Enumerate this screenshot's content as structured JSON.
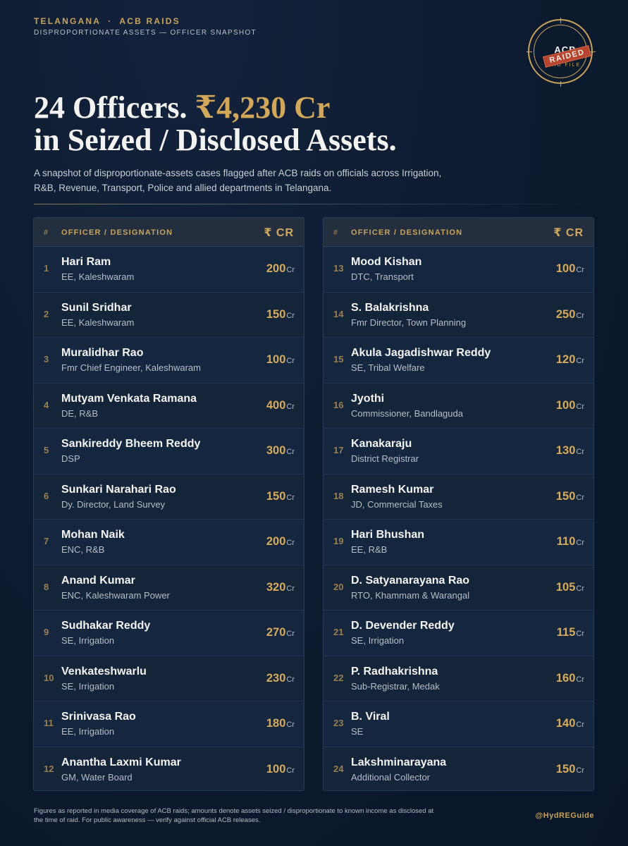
{
  "header": {
    "kicker_left": "TELANGANA",
    "kicker_sep": "·",
    "kicker_right": "ACB RAIDS",
    "subkicker": "DISPROPORTIONATE ASSETS — OFFICER SNAPSHOT"
  },
  "stamp": {
    "top_text": "ACB",
    "overlay": "RAIDED",
    "bottom_text": "AID FILE",
    "icon": "acb-raid-stamp"
  },
  "headline": {
    "part1": "24 Officers.",
    "amount": "₹4,230 Cr",
    "line2": "in Seized / Disclosed Assets."
  },
  "lede": "A snapshot of disproportionate-assets cases flagged after ACB raids on officials across Irrigation, R&B, Revenue, Transport, Police and allied departments in Telangana.",
  "table_header": {
    "num": "#",
    "officer": "OFFICER / DESIGNATION",
    "amount": "₹ CR"
  },
  "left_rows": [
    {
      "num": "1",
      "name": "Hari Ram",
      "designation": "EE, Kaleshwaram",
      "value": "200",
      "unit": "Cr"
    },
    {
      "num": "2",
      "name": "Sunil Sridhar",
      "designation": "EE, Kaleshwaram",
      "value": "150",
      "unit": "Cr"
    },
    {
      "num": "3",
      "name": "Muralidhar Rao",
      "designation": "Fmr Chief Engineer, Kaleshwaram",
      "value": "100",
      "unit": "Cr"
    },
    {
      "num": "4",
      "name": "Mutyam Venkata Ramana",
      "designation": "DE, R&B",
      "value": "400",
      "unit": "Cr"
    },
    {
      "num": "5",
      "name": "Sankireddy Bheem Reddy",
      "designation": "DSP",
      "value": "300",
      "unit": "Cr"
    },
    {
      "num": "6",
      "name": "Sunkari Narahari Rao",
      "designation": "Dy. Director, Land Survey",
      "value": "150",
      "unit": "Cr"
    },
    {
      "num": "7",
      "name": "Mohan Naik",
      "designation": "ENC, R&B",
      "value": "200",
      "unit": "Cr"
    },
    {
      "num": "8",
      "name": "Anand Kumar",
      "designation": "ENC, Kaleshwaram Power",
      "value": "320",
      "unit": "Cr"
    },
    {
      "num": "9",
      "name": "Sudhakar Reddy",
      "designation": "SE, Irrigation",
      "value": "270",
      "unit": "Cr"
    },
    {
      "num": "10",
      "name": "Venkateshwarlu",
      "designation": "SE, Irrigation",
      "value": "230",
      "unit": "Cr"
    },
    {
      "num": "11",
      "name": "Srinivasa Rao",
      "designation": "EE, Irrigation",
      "value": "180",
      "unit": "Cr"
    },
    {
      "num": "12",
      "name": "Anantha Laxmi Kumar",
      "designation": "GM, Water Board",
      "value": "100",
      "unit": "Cr"
    }
  ],
  "right_rows": [
    {
      "num": "13",
      "name": "Mood Kishan",
      "designation": "DTC, Transport",
      "value": "100",
      "unit": "Cr"
    },
    {
      "num": "14",
      "name": "S. Balakrishna",
      "designation": "Fmr Director, Town Planning",
      "value": "250",
      "unit": "Cr"
    },
    {
      "num": "15",
      "name": "Akula Jagadishwar Reddy",
      "designation": "SE, Tribal Welfare",
      "value": "120",
      "unit": "Cr"
    },
    {
      "num": "16",
      "name": "Jyothi",
      "designation": "Commissioner, Bandlaguda",
      "value": "100",
      "unit": "Cr"
    },
    {
      "num": "17",
      "name": "Kanakaraju",
      "designation": "District Registrar",
      "value": "130",
      "unit": "Cr"
    },
    {
      "num": "18",
      "name": "Ramesh Kumar",
      "designation": "JD, Commercial Taxes",
      "value": "150",
      "unit": "Cr"
    },
    {
      "num": "19",
      "name": "Hari Bhushan",
      "designation": "EE, R&B",
      "value": "110",
      "unit": "Cr"
    },
    {
      "num": "20",
      "name": "D. Satyanarayana Rao",
      "designation": "RTO, Khammam & Warangal",
      "value": "105",
      "unit": "Cr"
    },
    {
      "num": "21",
      "name": "D. Devender Reddy",
      "designation": "SE, Irrigation",
      "value": "115",
      "unit": "Cr"
    },
    {
      "num": "22",
      "name": "P. Radhakrishna",
      "designation": "Sub-Registrar, Medak",
      "value": "160",
      "unit": "Cr"
    },
    {
      "num": "23",
      "name": "B. Viral",
      "designation": "SE",
      "value": "140",
      "unit": "Cr"
    },
    {
      "num": "24",
      "name": "Lakshminarayana",
      "designation": "Additional Collector",
      "value": "150",
      "unit": "Cr"
    }
  ],
  "footer": {
    "note": "Figures as reported in media coverage of ACB raids; amounts denote assets seized / disproportionate to known income as disclosed at the time of raid. For public awareness — verify against official ACB releases.",
    "handle": "@HydREGuide"
  },
  "colors": {
    "background": "#0d1b30",
    "accent_gold": "#d1a75a",
    "stamp_red": "#b5452f",
    "panel": "#142540"
  }
}
